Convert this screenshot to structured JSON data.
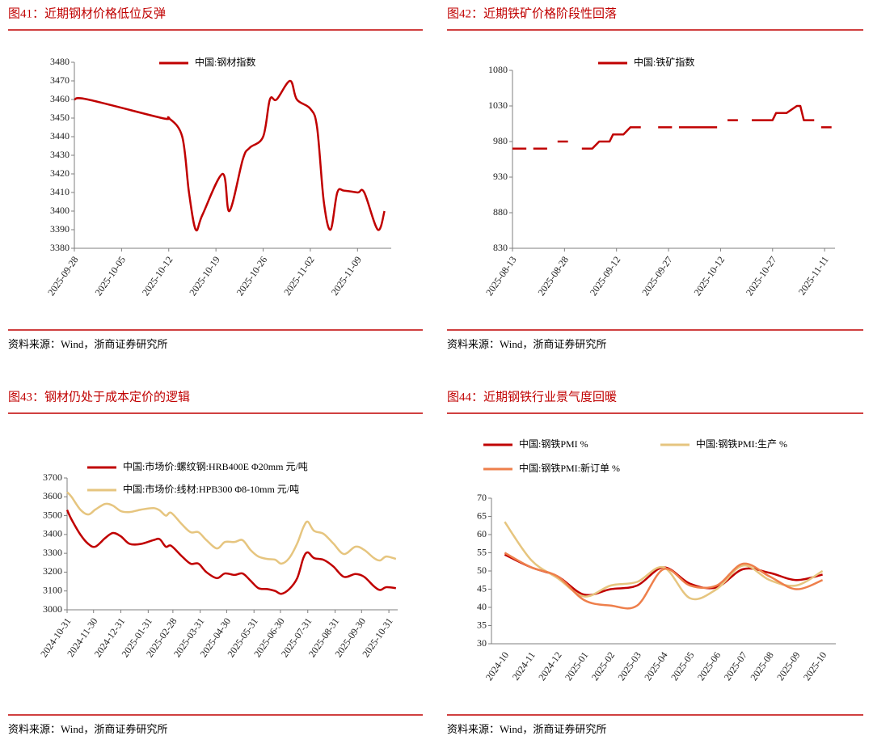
{
  "chart_data": [
    {
      "type": "line",
      "title": "图41：近期钢材价格低位反弹",
      "source": "资料来源：Wind，浙商证券研究所",
      "legend": "top",
      "smooth": true,
      "x": [
        "2025-09-28",
        "2025-09-30",
        "2025-10-11",
        "2025-10-12",
        "2025-10-14",
        "2025-10-15",
        "2025-10-16",
        "2025-10-17",
        "2025-10-20",
        "2025-10-21",
        "2025-10-23",
        "2025-10-24",
        "2025-10-26",
        "2025-10-27",
        "2025-10-28",
        "2025-10-30",
        "2025-10-31",
        "2025-11-02",
        "2025-11-03",
        "2025-11-04",
        "2025-11-05",
        "2025-11-06",
        "2025-11-07",
        "2025-11-09",
        "2025-11-10",
        "2025-11-12",
        "2025-11-13"
      ],
      "series": [
        {
          "name": "中国:钢材指数",
          "color": "#c00000",
          "values": [
            3460,
            3460,
            3450,
            3450,
            3440,
            3410,
            3390,
            3398,
            3420,
            3400,
            3428,
            3434,
            3440,
            3460,
            3460,
            3470,
            3460,
            3455,
            3445,
            3405,
            3390,
            3410,
            3411,
            3410,
            3410,
            3390,
            3400
          ]
        }
      ],
      "xlim": [
        "2025-09-28",
        "2025-11-14"
      ],
      "xticks": [
        "2025-09-28",
        "2025-10-05",
        "2025-10-12",
        "2025-10-19",
        "2025-10-26",
        "2025-11-02",
        "2025-11-09"
      ],
      "ylim": [
        3380,
        3480
      ],
      "yticks": [
        3380,
        3390,
        3400,
        3410,
        3420,
        3430,
        3440,
        3450,
        3460,
        3470,
        3480
      ]
    },
    {
      "type": "line",
      "title": "图42：近期铁矿价格阶段性回落",
      "source": "资料来源：Wind，浙商证券研究所",
      "legend": "top",
      "smooth": false,
      "x": [
        "2025-08-13",
        "2025-08-17",
        "2025-08-18",
        "2025-08-19",
        "2025-08-23",
        "2025-08-24",
        "2025-08-26",
        "2025-08-29",
        "2025-08-31",
        "2025-09-02",
        "2025-09-05",
        "2025-09-07",
        "2025-09-10",
        "2025-09-11",
        "2025-09-14",
        "2025-09-16",
        "2025-09-19",
        "2025-09-21",
        "2025-09-24",
        "2025-09-28",
        "2025-09-29",
        "2025-09-30",
        "2025-10-11",
        "2025-10-12",
        "2025-10-14",
        "2025-10-17",
        "2025-10-19",
        "2025-10-21",
        "2025-10-27",
        "2025-10-28",
        "2025-10-31",
        "2025-11-03",
        "2025-11-04",
        "2025-11-05",
        "2025-11-08",
        "2025-11-09",
        "2025-11-10",
        "2025-11-13"
      ],
      "series": [
        {
          "name": "中国:铁矿指数",
          "color": "#c00000",
          "values": [
            970,
            970,
            null,
            970,
            970,
            null,
            980,
            980,
            null,
            970,
            970,
            980,
            980,
            990,
            990,
            1000,
            1000,
            null,
            1000,
            1000,
            null,
            1000,
            1000,
            null,
            1010,
            1010,
            null,
            1010,
            1010,
            1020,
            1020,
            1030,
            1030,
            1010,
            1010,
            null,
            1000,
            1000
          ]
        }
      ],
      "xlim": [
        "2025-08-13",
        "2025-11-14"
      ],
      "xticks": [
        "2025-08-13",
        "2025-08-28",
        "2025-09-12",
        "2025-09-27",
        "2025-10-12",
        "2025-10-27",
        "2025-11-11"
      ],
      "ylim": [
        830,
        1080
      ],
      "yticks": [
        830,
        880,
        930,
        980,
        1030,
        1080
      ]
    },
    {
      "type": "line",
      "title": "图43：钢材仍处于成本定价的逻辑",
      "source": "资料来源：Wind，浙商证券研究所",
      "legend": "top-left",
      "smooth": true,
      "x": [
        "2024-10-31",
        "2024-11-05",
        "2024-11-15",
        "2024-11-24",
        "2024-12-02",
        "2024-12-13",
        "2024-12-22",
        "2024-12-31",
        "2025-01-10",
        "2025-01-23",
        "2025-02-06",
        "2025-02-13",
        "2025-02-20",
        "2025-02-26",
        "2025-03-10",
        "2025-03-20",
        "2025-03-29",
        "2025-04-07",
        "2025-04-19",
        "2025-04-28",
        "2025-05-09",
        "2025-05-18",
        "2025-05-27",
        "2025-06-05",
        "2025-06-15",
        "2025-06-24",
        "2025-07-01",
        "2025-07-10",
        "2025-07-19",
        "2025-07-26",
        "2025-07-31",
        "2025-08-07",
        "2025-08-18",
        "2025-08-29",
        "2025-09-10",
        "2025-09-23",
        "2025-10-03",
        "2025-10-14",
        "2025-10-21",
        "2025-10-28",
        "2025-11-08"
      ],
      "series": [
        {
          "name": "中国:市场价:螺纹钢:HRB400E Φ20mm 元/吨",
          "color": "#c00000",
          "values": [
            3530,
            3480,
            3400,
            3350,
            3335,
            3380,
            3408,
            3390,
            3350,
            3350,
            3370,
            3375,
            3335,
            3340,
            3285,
            3245,
            3245,
            3200,
            3168,
            3193,
            3185,
            3193,
            3155,
            3115,
            3110,
            3100,
            3085,
            3110,
            3168,
            3275,
            3305,
            3275,
            3265,
            3230,
            3175,
            3190,
            3175,
            3125,
            3105,
            3120,
            3115
          ]
        },
        {
          "name": "中国:市场价:线材:HPB300 Φ8-10mm 元/吨",
          "color": "#e6c57f",
          "values": [
            3625,
            3600,
            3532,
            3506,
            3532,
            3562,
            3553,
            3524,
            3519,
            3532,
            3540,
            3528,
            3500,
            3515,
            3455,
            3412,
            3412,
            3370,
            3326,
            3360,
            3360,
            3370,
            3318,
            3283,
            3270,
            3266,
            3245,
            3275,
            3352,
            3438,
            3468,
            3420,
            3403,
            3352,
            3296,
            3335,
            3318,
            3275,
            3262,
            3283,
            3270
          ]
        }
      ],
      "xlim": [
        "2024-10-31",
        "2025-11-10"
      ],
      "xticks": [
        "2024-10-31",
        "2024-11-30",
        "2024-12-31",
        "2025-01-31",
        "2025-02-28",
        "2025-03-31",
        "2025-04-30",
        "2025-05-31",
        "2025-06-30",
        "2025-07-31",
        "2025-08-31",
        "2025-09-30",
        "2025-10-31"
      ],
      "ylim": [
        3000,
        3700
      ],
      "yticks": [
        3000,
        3100,
        3200,
        3300,
        3400,
        3500,
        3600,
        3700
      ]
    },
    {
      "type": "line",
      "title": "图44：近期钢铁行业景气度回暖",
      "source": "资料来源：Wind，浙商证券研究所",
      "legend": "top",
      "smooth": true,
      "categories": [
        "2024-10",
        "2024-11",
        "2024-12",
        "2025-01",
        "2025-02",
        "2025-03",
        "2025-04",
        "2025-05",
        "2025-06",
        "2025-07",
        "2025-08",
        "2025-09",
        "2025-10"
      ],
      "series": [
        {
          "name": "中国:钢铁PMI %",
          "color": "#c00000",
          "values": [
            54.5,
            51,
            48.5,
            43.5,
            45,
            46,
            51,
            46.5,
            45.5,
            50.5,
            49.5,
            47.5,
            49
          ]
        },
        {
          "name": "中国:钢铁PMI:生产 %",
          "color": "#e6c57f",
          "values": [
            63.5,
            53,
            48,
            43,
            46,
            47,
            51,
            42.5,
            45,
            51.5,
            47.5,
            46,
            50
          ]
        },
        {
          "name": "中国:钢铁PMI:新订单 %",
          "color": "#ee7f4b",
          "values": [
            55,
            51,
            48.5,
            42,
            40.5,
            40.5,
            50.5,
            46,
            46,
            52,
            48.5,
            45,
            47.5
          ]
        }
      ],
      "ylim": [
        30,
        70
      ],
      "yticks": [
        30,
        35,
        40,
        45,
        50,
        55,
        60,
        65,
        70
      ]
    }
  ]
}
